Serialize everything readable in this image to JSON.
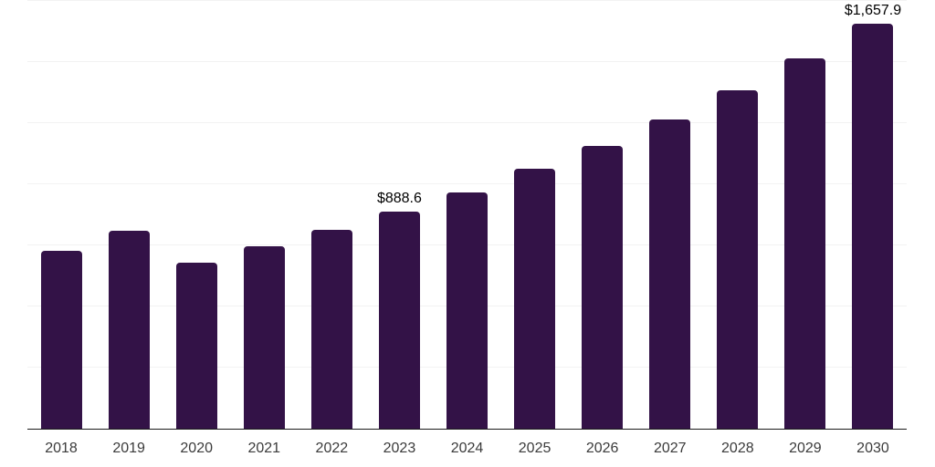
{
  "chart": {
    "colors": {
      "background": "#ffffff",
      "bar": "#331247",
      "grid": "#f2f2f2",
      "axis": "#1a1a1a",
      "tick_label": "#3b3b3b",
      "data_label": "#000000"
    }
  },
  "chart_data": {
    "type": "bar",
    "title": "",
    "xlabel": "",
    "ylabel": "",
    "categories": [
      "2018",
      "2019",
      "2020",
      "2021",
      "2022",
      "2023",
      "2024",
      "2025",
      "2026",
      "2027",
      "2028",
      "2029",
      "2030"
    ],
    "values": [
      727,
      809,
      679,
      746,
      814,
      888.6,
      967,
      1063,
      1157,
      1264,
      1384,
      1514,
      1657.9
    ],
    "value_labels": [
      "",
      "",
      "",
      "",
      "",
      "$888.6",
      "",
      "",
      "",
      "",
      "",
      "",
      "$1,657.9"
    ],
    "ylim": [
      0,
      1750
    ],
    "grid_interval": 250,
    "grid": true,
    "legend": false,
    "y_axis_labels_shown": false
  }
}
